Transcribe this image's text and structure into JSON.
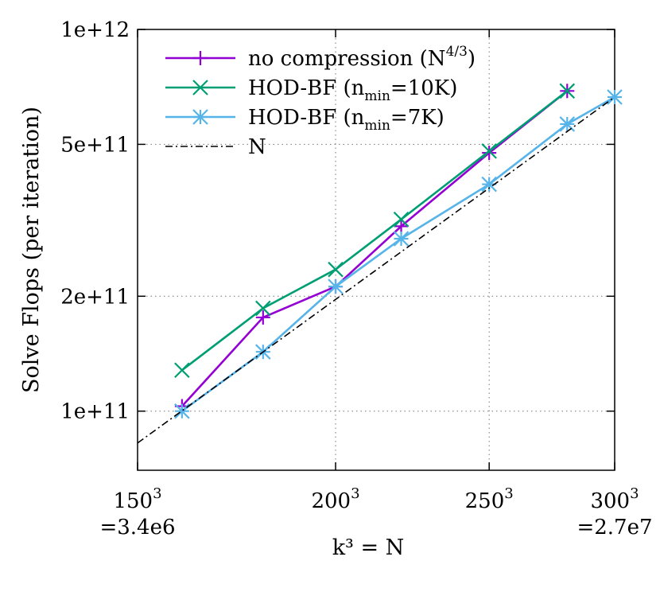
{
  "chart_data": {
    "type": "line",
    "title": "",
    "xlabel": "k³ = N",
    "ylabel": "Solve Flops (per iteration)",
    "x_scale": "log",
    "y_scale": "log",
    "xlim": [
      150,
      300
    ],
    "ylim": [
      70000000000,
      1000000000000
    ],
    "grid": true,
    "legend_position": "top-left",
    "x_ticks": [
      {
        "value": 150,
        "label": "150",
        "exp": "3",
        "sub": "=3.4e6"
      },
      {
        "value": 200,
        "label": "200",
        "exp": "3",
        "sub": ""
      },
      {
        "value": 250,
        "label": "250",
        "exp": "3",
        "sub": ""
      },
      {
        "value": 300,
        "label": "300",
        "exp": "3",
        "sub": "=2.7e7"
      }
    ],
    "y_ticks": [
      {
        "value": 100000000000,
        "label": "1e+11"
      },
      {
        "value": 200000000000,
        "label": "2e+11"
      },
      {
        "value": 500000000000,
        "label": "5e+11"
      },
      {
        "value": 1000000000000,
        "label": "1e+12"
      }
    ],
    "series": [
      {
        "name": "no compression (N4/3)",
        "legend": {
          "text": "no compression (N",
          "sup": "4/3",
          "tail": ")"
        },
        "color": "#9400D3",
        "marker": "plus",
        "x": [
          160,
          180,
          200,
          220,
          250,
          280
        ],
        "values": [
          103000000000,
          176000000000,
          212000000000,
          305000000000,
          475000000000,
          690000000000
        ]
      },
      {
        "name": "HOD-BF (nmin=10K)",
        "legend": {
          "text": "HOD-BF (n",
          "sub": "min",
          "tail": "=10K)"
        },
        "color": "#009E73",
        "marker": "x",
        "x": [
          160,
          180,
          200,
          220,
          250,
          280
        ],
        "values": [
          128000000000,
          186000000000,
          235000000000,
          318000000000,
          480000000000,
          690000000000
        ]
      },
      {
        "name": "HOD-BF (nmin=7K)",
        "legend": {
          "text": "HOD-BF (n",
          "sub": "min",
          "tail": "=7K)"
        },
        "color": "#56B4E9",
        "marker": "star",
        "x": [
          160,
          180,
          200,
          220,
          250,
          280,
          300
        ],
        "values": [
          100000000000,
          143000000000,
          212000000000,
          283000000000,
          393000000000,
          565000000000,
          665000000000
        ]
      },
      {
        "name": "N",
        "legend": {
          "text": "N"
        },
        "color": "#000000",
        "marker": "none",
        "dash": "dashdot",
        "x": [
          150,
          300
        ],
        "values": [
          82500000000,
          665000000000
        ]
      }
    ]
  }
}
